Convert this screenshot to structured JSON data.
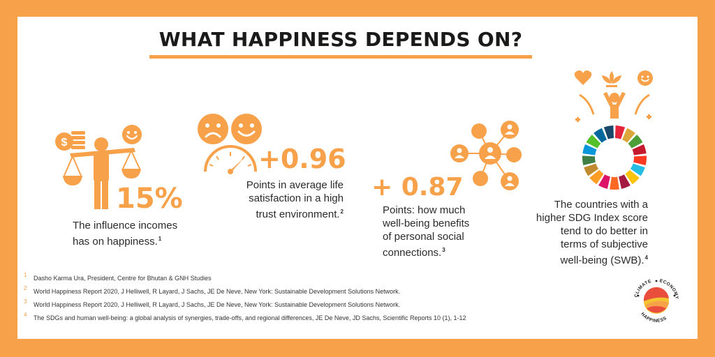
{
  "title": "WHAT HAPPINESS DEPENDS ON?",
  "colors": {
    "accent": "#F7A14A",
    "text": "#2B2B2B",
    "background": "#FFFFFF"
  },
  "stat1": {
    "value": "15%",
    "text": "The influence incomes has on happiness.",
    "ref": "1"
  },
  "stat2": {
    "value": "+0.96",
    "line1": "Points in average life",
    "line2": "satisfaction in a high",
    "line3": "trust environment.",
    "ref": "2"
  },
  "stat3": {
    "value": "+ 0.87",
    "line1": "Points: how much",
    "line2": "well-being benefits",
    "line3": "of personal social",
    "line4": "connections.",
    "ref": "3"
  },
  "stat4": {
    "line1": "The countries with a",
    "line2": "higher SDG Index score",
    "line3": "tend to do better in",
    "line4": "terms of subjective",
    "line5": "well-being (SWB).",
    "ref": "4"
  },
  "footnotes": [
    {
      "num": "1",
      "text": "Dasho Karma Ura, President, Centre for Bhutan & GNH Studies"
    },
    {
      "num": "2",
      "text": "World Happiness Report 2020, J Helliwell, R Layard, J Sachs, JE De Neve, New York: Sustainable Development Solutions Network."
    },
    {
      "num": "3",
      "text": "World Happiness Report 2020, J Helliwell, R Layard, J Sachs, JE De Neve, New York: Sustainable Development Solutions Network."
    },
    {
      "num": "4",
      "text": "The SDGs and human well-being: a global analysis of synergies, trade-offs, and regional differences, JE De Neve, JD Sachs, Scientific Reports 10 (1), 1-12"
    }
  ],
  "logo": {
    "word1": "CLIMATE",
    "word2": "ECONOMY",
    "word3": "HAPPINESS"
  },
  "icons": [
    "scales-person-icon",
    "coins-icon",
    "smiley-icon",
    "sad-face-icon",
    "happy-face-icon",
    "gauge-icon",
    "social-network-icon",
    "heart-icon",
    "lotus-icon",
    "joyful-person-icon",
    "sdg-wheel-icon"
  ]
}
